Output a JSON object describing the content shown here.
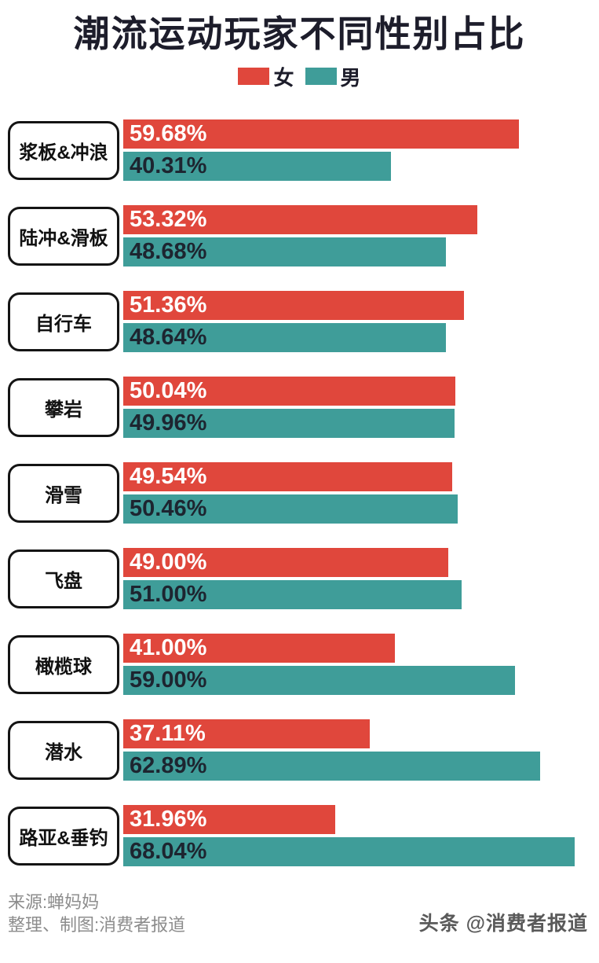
{
  "chart_data": {
    "type": "bar",
    "orientation": "horizontal",
    "title": "潮流运动玩家不同性别占比",
    "legend_position": "top",
    "grid": false,
    "xlim": [
      0,
      70
    ],
    "categories": [
      "浆板&冲浪",
      "陆冲&滑板",
      "自行车",
      "攀岩",
      "滑雪",
      "飞盘",
      "橄榄球",
      "潜水",
      "路亚&垂钓"
    ],
    "series": [
      {
        "name": "女",
        "color": "#E0473C",
        "values": [
          59.68,
          53.32,
          51.36,
          50.04,
          49.54,
          49.0,
          41.0,
          37.11,
          31.96
        ],
        "labels": [
          "59.68%",
          "53.32%",
          "51.36%",
          "50.04%",
          "49.54%",
          "49.00%",
          "41.00%",
          "37.11%",
          "31.96%"
        ]
      },
      {
        "name": "男",
        "color": "#3F9D99",
        "values": [
          40.31,
          48.68,
          48.64,
          49.96,
          50.46,
          51.0,
          59.0,
          62.89,
          68.04
        ],
        "labels": [
          "40.31%",
          "48.68%",
          "48.64%",
          "49.96%",
          "50.46%",
          "51.00%",
          "59.00%",
          "62.89%",
          "68.04%"
        ]
      }
    ]
  },
  "legend": {
    "female_label": "女",
    "male_label": "男"
  },
  "footer": {
    "source": "来源:蝉妈妈",
    "credit": "整理、制图:消费者报道",
    "watermark": "头条 @消费者报道"
  },
  "colors": {
    "female": "#E0473C",
    "male": "#3F9D99",
    "title_text": "#1D1D2B",
    "male_bar_text": "#1D2530",
    "female_bar_text": "#FFFFFF",
    "box_border": "#141414",
    "footer_text": "#8C8C8C",
    "watermark_text": "#5A5A5A"
  }
}
